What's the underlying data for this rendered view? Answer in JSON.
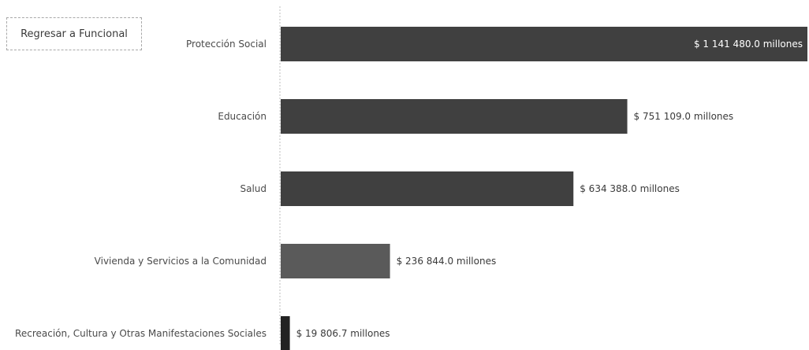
{
  "back_button": {
    "label": "Regresar a Funcional"
  },
  "chart_data": {
    "type": "bar",
    "orientation": "horizontal",
    "categories": [
      "Protección Social",
      "Educación",
      "Salud",
      "Vivienda y Servicios a la Comunidad",
      "Recreación, Cultura y Otras Manifestaciones Sociales"
    ],
    "values": [
      1141480.0,
      751109.0,
      634388.0,
      236844.0,
      19806.7
    ],
    "value_labels": [
      "$ 1 141 480.0 millones",
      "$ 751 109.0 millones",
      "$ 634 388.0 millones",
      "$ 236 844.0 millones",
      "$ 19 806.7 millones"
    ],
    "bar_colors": [
      "#404040",
      "#404040",
      "#404040",
      "#5a5a5a",
      "#222222"
    ],
    "title": "",
    "xlabel": "",
    "ylabel": "",
    "xlim": [
      0,
      1141480.0
    ],
    "grid": false,
    "legend": "none"
  }
}
